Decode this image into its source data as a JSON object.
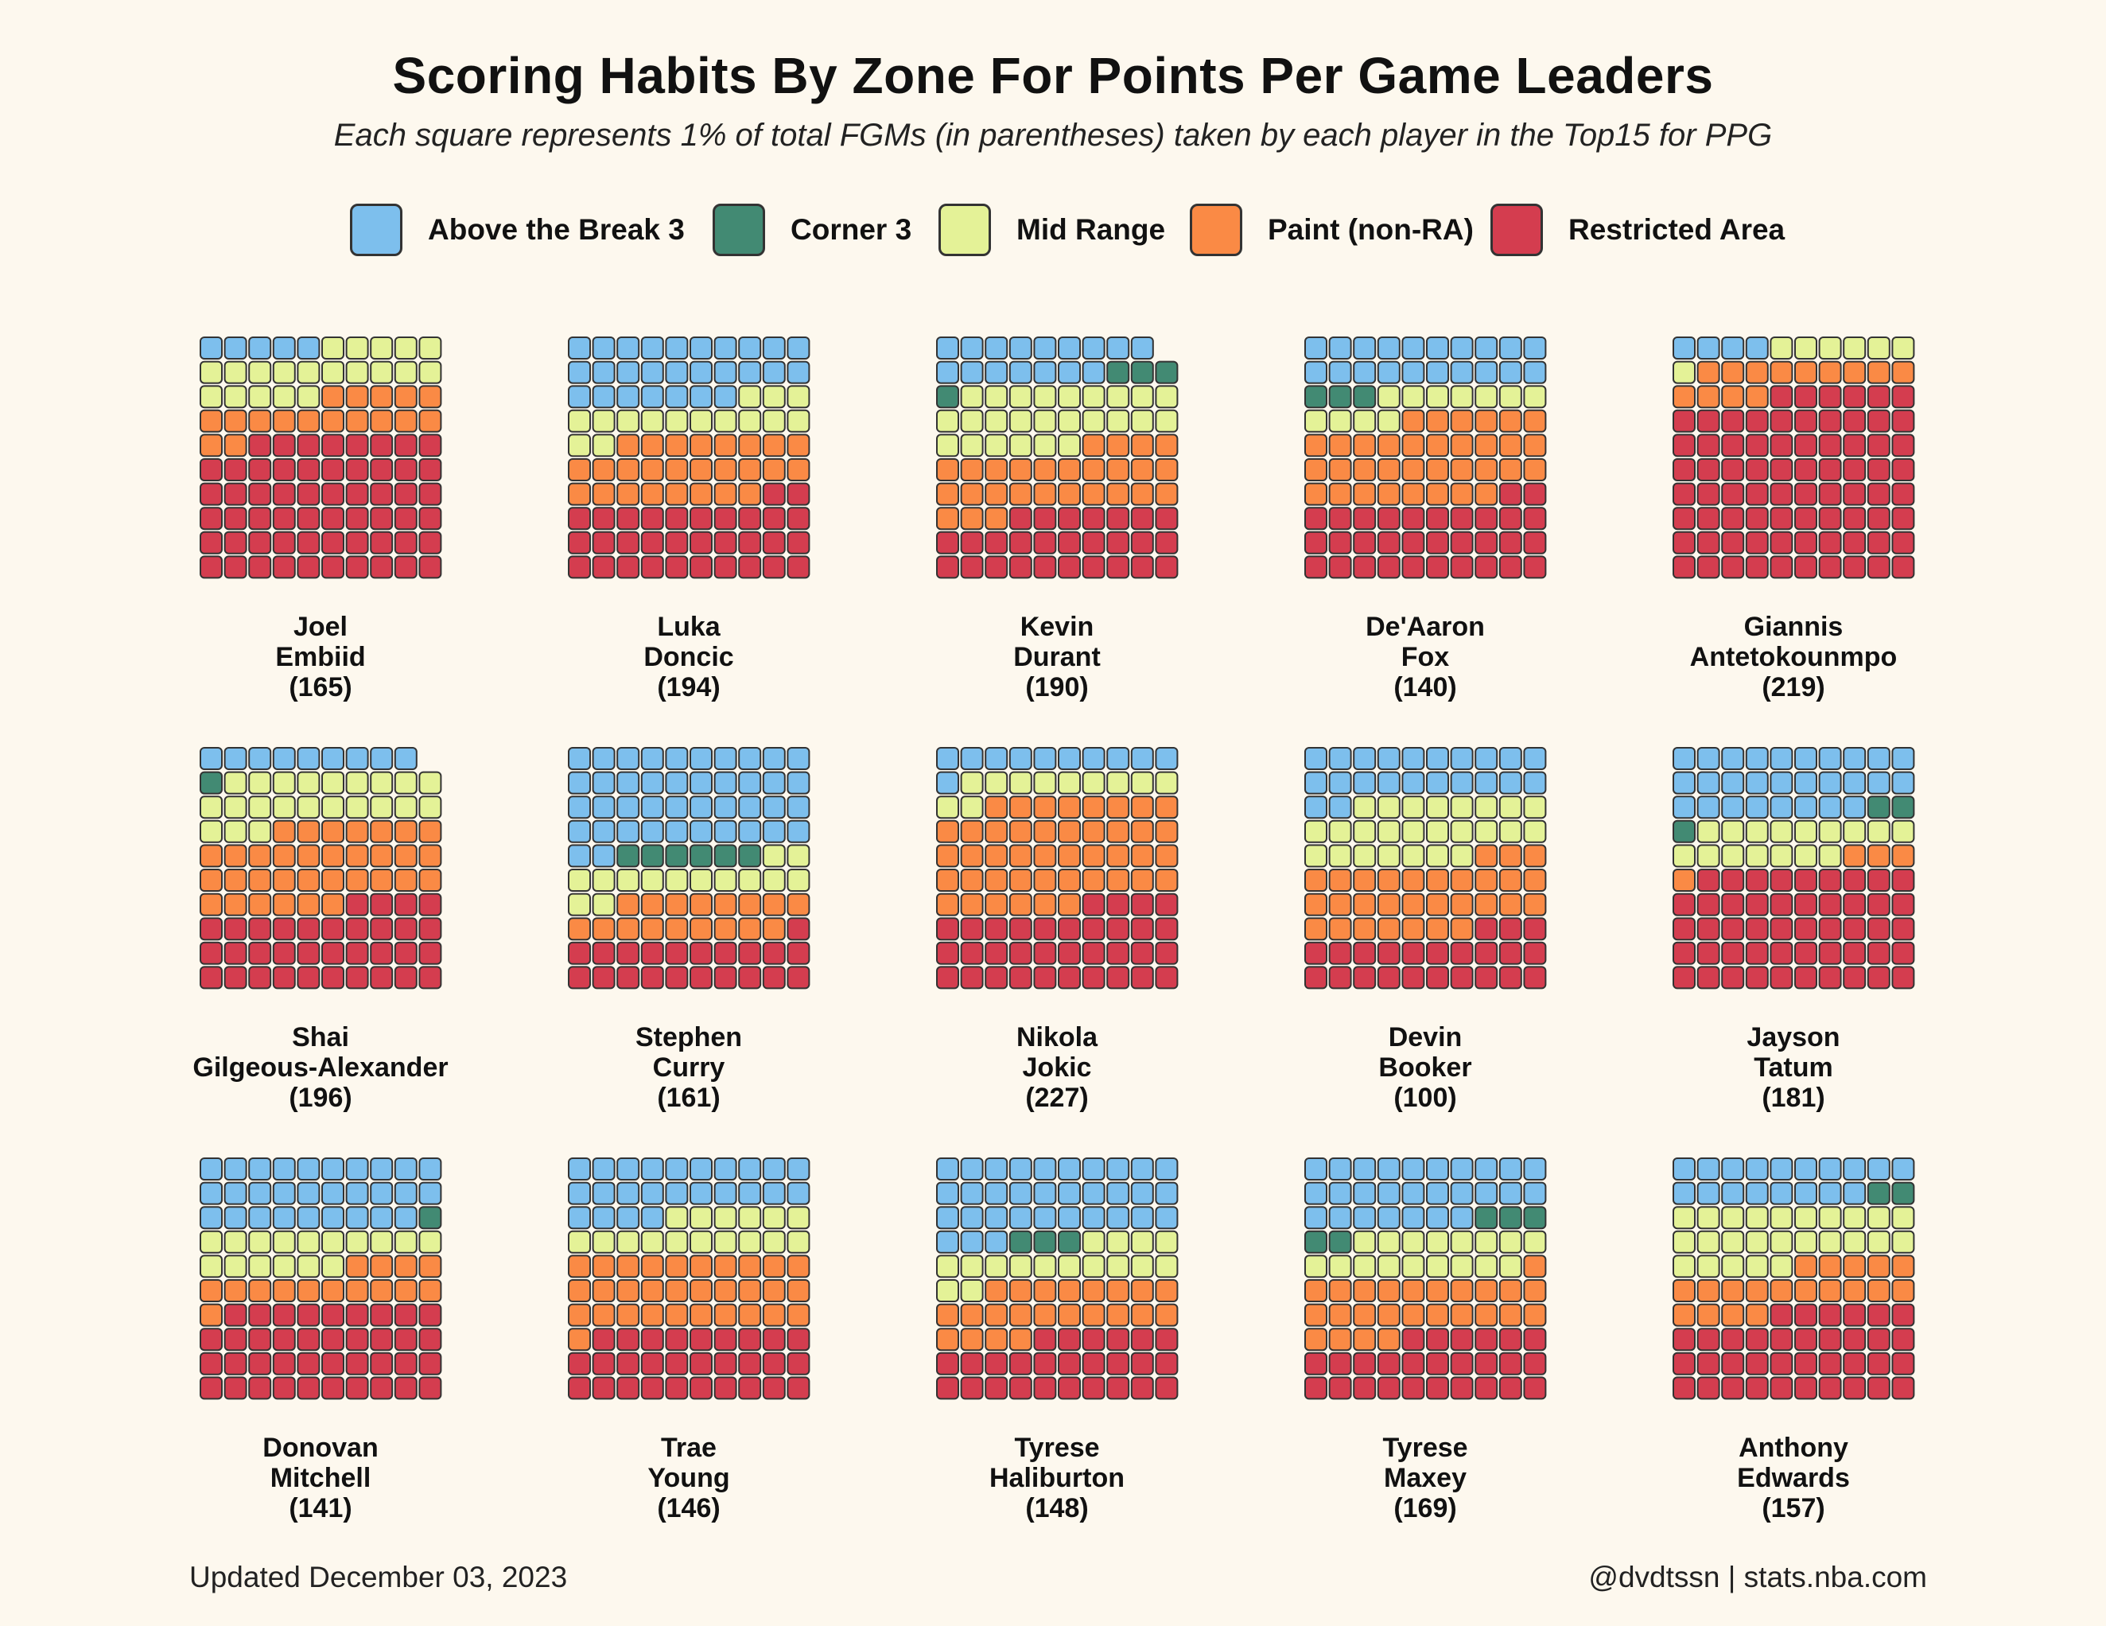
{
  "title": "Scoring Habits By Zone For Points Per Game Leaders",
  "subtitle": "Each square represents 1% of total FGMs (in parentheses) taken by each player in the Top15 for PPG",
  "footer": {
    "updated": "Updated December 03, 2023",
    "credit": "@dvdtssn | stats.nba.com"
  },
  "legend": [
    {
      "label": "Above the Break 3",
      "color": "#7dbfed"
    },
    {
      "label": "Corner 3",
      "color": "#428a73"
    },
    {
      "label": "Mid Range",
      "color": "#e4f297"
    },
    {
      "label": "Paint (non-RA)",
      "color": "#fa8a45"
    },
    {
      "label": "Restricted Area",
      "color": "#d43d4f"
    }
  ],
  "chart_data": {
    "type": "waffle",
    "unit": "Each square = 1% of total FGMs",
    "zones": [
      "Above the Break 3",
      "Corner 3",
      "Mid Range",
      "Paint (non-RA)",
      "Restricted Area"
    ],
    "players": [
      {
        "first": "Joel",
        "last": "Embiid",
        "fgm": "(165)",
        "pct": [
          5,
          0,
          20,
          17,
          58
        ]
      },
      {
        "first": "Luka",
        "last": "Doncic",
        "fgm": "(194)",
        "pct": [
          27,
          0,
          15,
          26,
          32
        ]
      },
      {
        "first": "Kevin",
        "last": "Durant",
        "fgm": "(190)",
        "pct": [
          16,
          4,
          25,
          27,
          27
        ]
      },
      {
        "first": "De'Aaron",
        "last": "Fox",
        "fgm": "(140)",
        "pct": [
          20,
          3,
          11,
          34,
          32
        ]
      },
      {
        "first": "Giannis",
        "last": "Antetokounmpo",
        "fgm": "(219)",
        "pct": [
          4,
          0,
          7,
          13,
          76
        ]
      },
      {
        "first": "Shai",
        "last": "Gilgeous-Alexander",
        "fgm": "(196)",
        "pct": [
          9,
          1,
          22,
          33,
          34
        ]
      },
      {
        "first": "Stephen",
        "last": "Curry",
        "fgm": "(161)",
        "pct": [
          42,
          6,
          14,
          17,
          21
        ]
      },
      {
        "first": "Nikola",
        "last": "Jokic",
        "fgm": "(227)",
        "pct": [
          11,
          0,
          11,
          44,
          34
        ]
      },
      {
        "first": "Devin",
        "last": "Booker",
        "fgm": "(100)",
        "pct": [
          22,
          0,
          25,
          30,
          23
        ]
      },
      {
        "first": "Jayson",
        "last": "Tatum",
        "fgm": "(181)",
        "pct": [
          28,
          3,
          16,
          4,
          49
        ]
      },
      {
        "first": "Donovan",
        "last": "Mitchell",
        "fgm": "(141)",
        "pct": [
          29,
          1,
          16,
          15,
          39
        ]
      },
      {
        "first": "Trae",
        "last": "Young",
        "fgm": "(146)",
        "pct": [
          24,
          0,
          16,
          31,
          29
        ]
      },
      {
        "first": "Tyrese",
        "last": "Haliburton",
        "fgm": "(148)",
        "pct": [
          33,
          3,
          16,
          22,
          26
        ]
      },
      {
        "first": "Tyrese",
        "last": "Maxey",
        "fgm": "(169)",
        "pct": [
          27,
          5,
          17,
          25,
          26
        ]
      },
      {
        "first": "Anthony",
        "last": "Edwards",
        "fgm": "(157)",
        "pct": [
          18,
          2,
          25,
          19,
          36
        ]
      }
    ]
  }
}
